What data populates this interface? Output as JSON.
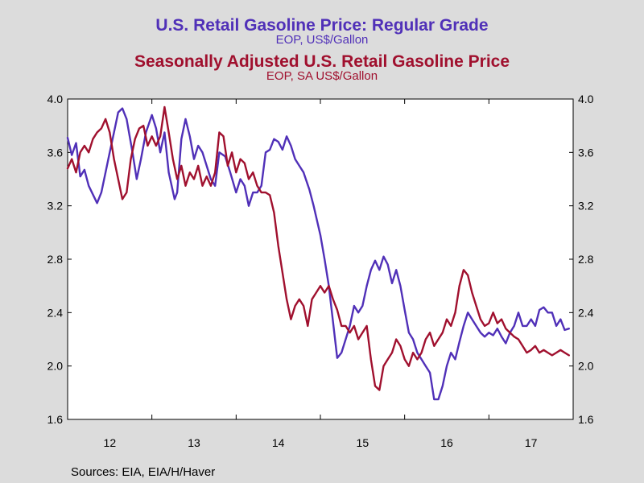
{
  "header": {
    "title1": "U.S. Retail Gasoline Price: Regular Grade",
    "subtitle1": "EOP, US$/Gallon",
    "title2": "Seasonally Adjusted U.S. Retail Gasoline Price",
    "subtitle2": "EOP, SA US$/Gallon"
  },
  "footer": {
    "source": "Sources:  EIA, EIA/H/Haver"
  },
  "colors": {
    "series1": "#5030b8",
    "series2": "#a0102e",
    "background": "#dcdcdc",
    "plot_bg": "#ffffff"
  },
  "chart_data": {
    "type": "line",
    "title": "U.S. Retail Gasoline Price: Regular Grade",
    "subtitle": "EOP, US$/Gallon",
    "ylim": [
      1.6,
      4.0
    ],
    "xlim": [
      2011.1,
      2017.1
    ],
    "grid": false,
    "y_ticks": [
      "1.6",
      "2.0",
      "2.4",
      "2.8",
      "3.2",
      "3.6",
      "4.0"
    ],
    "y_tick_values": [
      1.6,
      2.0,
      2.4,
      2.8,
      3.2,
      3.6,
      4.0
    ],
    "x_ticks": [
      "12",
      "13",
      "14",
      "15",
      "16",
      "17"
    ],
    "x_tick_positions": [
      2011.6,
      2012.6,
      2013.6,
      2014.6,
      2015.6,
      2016.6
    ],
    "x_boundaries": [
      2012.1,
      2013.1,
      2014.1,
      2015.1,
      2016.1
    ],
    "series": [
      {
        "name": "U.S. Retail Gasoline Price: Regular Grade",
        "color": "#5030b8",
        "x": [
          2011.1,
          2011.15,
          2011.2,
          2011.25,
          2011.3,
          2011.35,
          2011.45,
          2011.5,
          2011.55,
          2011.6,
          2011.65,
          2011.7,
          2011.75,
          2011.8,
          2011.87,
          2011.92,
          2011.97,
          2012.03,
          2012.1,
          2012.15,
          2012.2,
          2012.25,
          2012.3,
          2012.37,
          2012.4,
          2012.45,
          2012.5,
          2012.55,
          2012.6,
          2012.65,
          2012.7,
          2012.75,
          2012.8,
          2012.85,
          2012.9,
          2012.97,
          2013.03,
          2013.1,
          2013.15,
          2013.2,
          2013.25,
          2013.3,
          2013.35,
          2013.4,
          2013.45,
          2013.5,
          2013.55,
          2013.6,
          2013.65,
          2013.7,
          2013.75,
          2013.8,
          2013.85,
          2013.9,
          2013.97,
          2014.02,
          2014.1,
          2014.15,
          2014.2,
          2014.25,
          2014.3,
          2014.35,
          2014.45,
          2014.5,
          2014.55,
          2014.6,
          2014.65,
          2014.7,
          2014.75,
          2014.8,
          2014.85,
          2014.9,
          2014.95,
          2015.0,
          2015.05,
          2015.1,
          2015.15,
          2015.2,
          2015.25,
          2015.3,
          2015.35,
          2015.4,
          2015.45,
          2015.5,
          2015.55,
          2015.6,
          2015.65,
          2015.7,
          2015.75,
          2015.8,
          2015.85,
          2015.9,
          2015.95,
          2016.0,
          2016.05,
          2016.1,
          2016.15,
          2016.2,
          2016.25,
          2016.3,
          2016.35,
          2016.4,
          2016.45,
          2016.5,
          2016.55,
          2016.6,
          2016.65,
          2016.7,
          2016.75,
          2016.8,
          2016.85,
          2016.9,
          2016.95,
          2017.0,
          2017.05
        ],
        "values": [
          3.71,
          3.58,
          3.67,
          3.42,
          3.47,
          3.35,
          3.22,
          3.3,
          3.45,
          3.6,
          3.75,
          3.9,
          3.93,
          3.85,
          3.6,
          3.4,
          3.55,
          3.75,
          3.88,
          3.78,
          3.6,
          3.75,
          3.45,
          3.25,
          3.3,
          3.7,
          3.85,
          3.72,
          3.55,
          3.65,
          3.6,
          3.5,
          3.4,
          3.35,
          3.6,
          3.57,
          3.45,
          3.3,
          3.4,
          3.35,
          3.2,
          3.3,
          3.3,
          3.35,
          3.6,
          3.62,
          3.7,
          3.68,
          3.62,
          3.72,
          3.65,
          3.55,
          3.5,
          3.45,
          3.32,
          3.2,
          2.98,
          2.8,
          2.6,
          2.33,
          2.06,
          2.1,
          2.3,
          2.45,
          2.4,
          2.45,
          2.6,
          2.72,
          2.79,
          2.72,
          2.82,
          2.76,
          2.62,
          2.72,
          2.6,
          2.42,
          2.25,
          2.2,
          2.1,
          2.05,
          2.0,
          1.95,
          1.75,
          1.75,
          1.85,
          2.0,
          2.1,
          2.05,
          2.18,
          2.3,
          2.4,
          2.35,
          2.3,
          2.25,
          2.22,
          2.25,
          2.23,
          2.28,
          2.22,
          2.17,
          2.25,
          2.3,
          2.4,
          2.3,
          2.3,
          2.35,
          2.3,
          2.42,
          2.44,
          2.4,
          2.4,
          2.3,
          2.35,
          2.27,
          2.28
        ]
      },
      {
        "name": "Seasonally Adjusted U.S. Retail Gasoline Price",
        "color": "#a0102e",
        "x": [
          2011.1,
          2011.15,
          2011.2,
          2011.25,
          2011.3,
          2011.35,
          2011.4,
          2011.45,
          2011.5,
          2011.55,
          2011.6,
          2011.65,
          2011.7,
          2011.75,
          2011.8,
          2011.85,
          2011.9,
          2011.95,
          2012.0,
          2012.05,
          2012.1,
          2012.15,
          2012.2,
          2012.25,
          2012.3,
          2012.35,
          2012.4,
          2012.45,
          2012.5,
          2012.55,
          2012.6,
          2012.65,
          2012.7,
          2012.75,
          2012.8,
          2012.85,
          2012.9,
          2012.95,
          2013.0,
          2013.05,
          2013.1,
          2013.15,
          2013.2,
          2013.25,
          2013.3,
          2013.35,
          2013.4,
          2013.45,
          2013.5,
          2013.55,
          2013.6,
          2013.65,
          2013.7,
          2013.75,
          2013.8,
          2013.85,
          2013.9,
          2013.95,
          2014.0,
          2014.05,
          2014.1,
          2014.15,
          2014.2,
          2014.25,
          2014.3,
          2014.35,
          2014.4,
          2014.45,
          2014.5,
          2014.55,
          2014.6,
          2014.65,
          2014.7,
          2014.75,
          2014.8,
          2014.85,
          2014.9,
          2014.95,
          2015.0,
          2015.05,
          2015.1,
          2015.15,
          2015.2,
          2015.25,
          2015.3,
          2015.35,
          2015.4,
          2015.45,
          2015.5,
          2015.55,
          2015.6,
          2015.65,
          2015.7,
          2015.75,
          2015.8,
          2015.85,
          2015.9,
          2015.95,
          2016.0,
          2016.05,
          2016.1,
          2016.15,
          2016.2,
          2016.25,
          2016.3,
          2016.35,
          2016.4,
          2016.45,
          2016.5,
          2016.55,
          2016.6,
          2016.65,
          2016.7,
          2016.75,
          2016.8,
          2016.85,
          2016.9,
          2016.95,
          2017.0,
          2017.05
        ],
        "values": [
          3.48,
          3.55,
          3.45,
          3.6,
          3.65,
          3.6,
          3.7,
          3.75,
          3.78,
          3.85,
          3.75,
          3.55,
          3.4,
          3.25,
          3.3,
          3.55,
          3.7,
          3.78,
          3.8,
          3.65,
          3.72,
          3.65,
          3.72,
          3.94,
          3.75,
          3.55,
          3.4,
          3.5,
          3.35,
          3.45,
          3.4,
          3.5,
          3.35,
          3.42,
          3.35,
          3.45,
          3.75,
          3.72,
          3.5,
          3.6,
          3.45,
          3.55,
          3.52,
          3.4,
          3.45,
          3.35,
          3.3,
          3.3,
          3.28,
          3.15,
          2.9,
          2.7,
          2.5,
          2.35,
          2.45,
          2.5,
          2.45,
          2.3,
          2.5,
          2.55,
          2.6,
          2.55,
          2.6,
          2.5,
          2.42,
          2.3,
          2.3,
          2.25,
          2.3,
          2.2,
          2.25,
          2.3,
          2.05,
          1.85,
          1.82,
          2.0,
          2.05,
          2.1,
          2.2,
          2.15,
          2.05,
          2.0,
          2.1,
          2.05,
          2.1,
          2.2,
          2.25,
          2.15,
          2.2,
          2.25,
          2.35,
          2.3,
          2.4,
          2.6,
          2.72,
          2.68,
          2.55,
          2.45,
          2.35,
          2.3,
          2.32,
          2.4,
          2.32,
          2.35,
          2.28,
          2.25,
          2.22,
          2.2,
          2.15,
          2.1,
          2.12,
          2.15,
          2.1,
          2.12,
          2.1,
          2.08,
          2.1,
          2.12,
          2.1,
          2.08
        ]
      }
    ]
  }
}
